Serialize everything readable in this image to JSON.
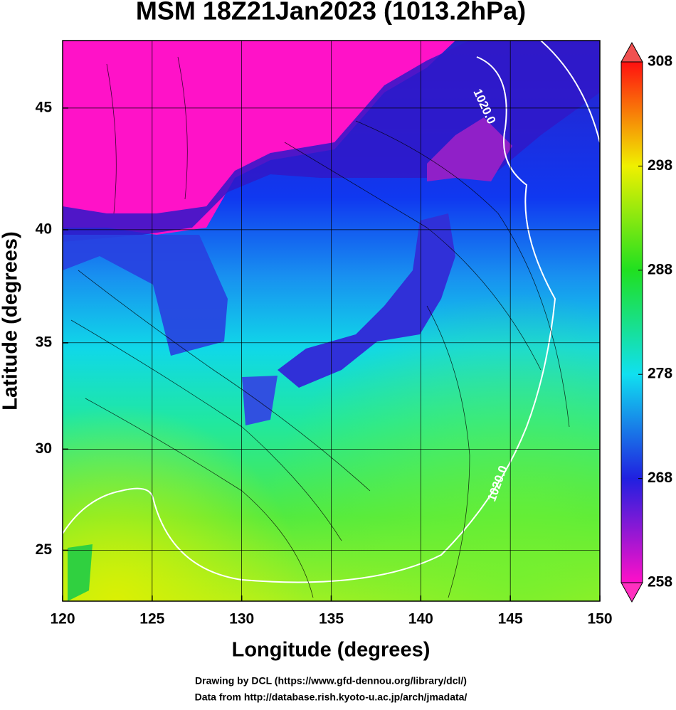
{
  "chart_data": {
    "type": "contour",
    "title": "MSM 18Z21Jan2023 (1013.2hPa)",
    "x_label": "Longitude (degrees)",
    "y_label": "Latitude  (degrees)",
    "xlim": [
      120,
      150
    ],
    "ylim": [
      22.4,
      47.6
    ],
    "xticks": [
      120,
      125,
      130,
      135,
      140,
      145,
      150
    ],
    "yticks": [
      25,
      30,
      35,
      40,
      45
    ],
    "grid": true,
    "projection": "mercator",
    "contour_labels": [
      "1020.0",
      "1020.0"
    ],
    "colorbar": {
      "lim": [
        258,
        308
      ],
      "ticks": [
        258,
        268,
        278,
        288,
        298,
        308
      ],
      "colors": [
        "#ff10c8",
        "#2020e0",
        "#10e0f0",
        "#20e020",
        "#f0f000",
        "#ff1010"
      ]
    },
    "footer": [
      "Drawing by DCL (https://www.gfd-dennou.org/library/dcl/)",
      "Data from http://database.rish.kyoto-u.ac.jp/arch/jmadata/"
    ]
  }
}
